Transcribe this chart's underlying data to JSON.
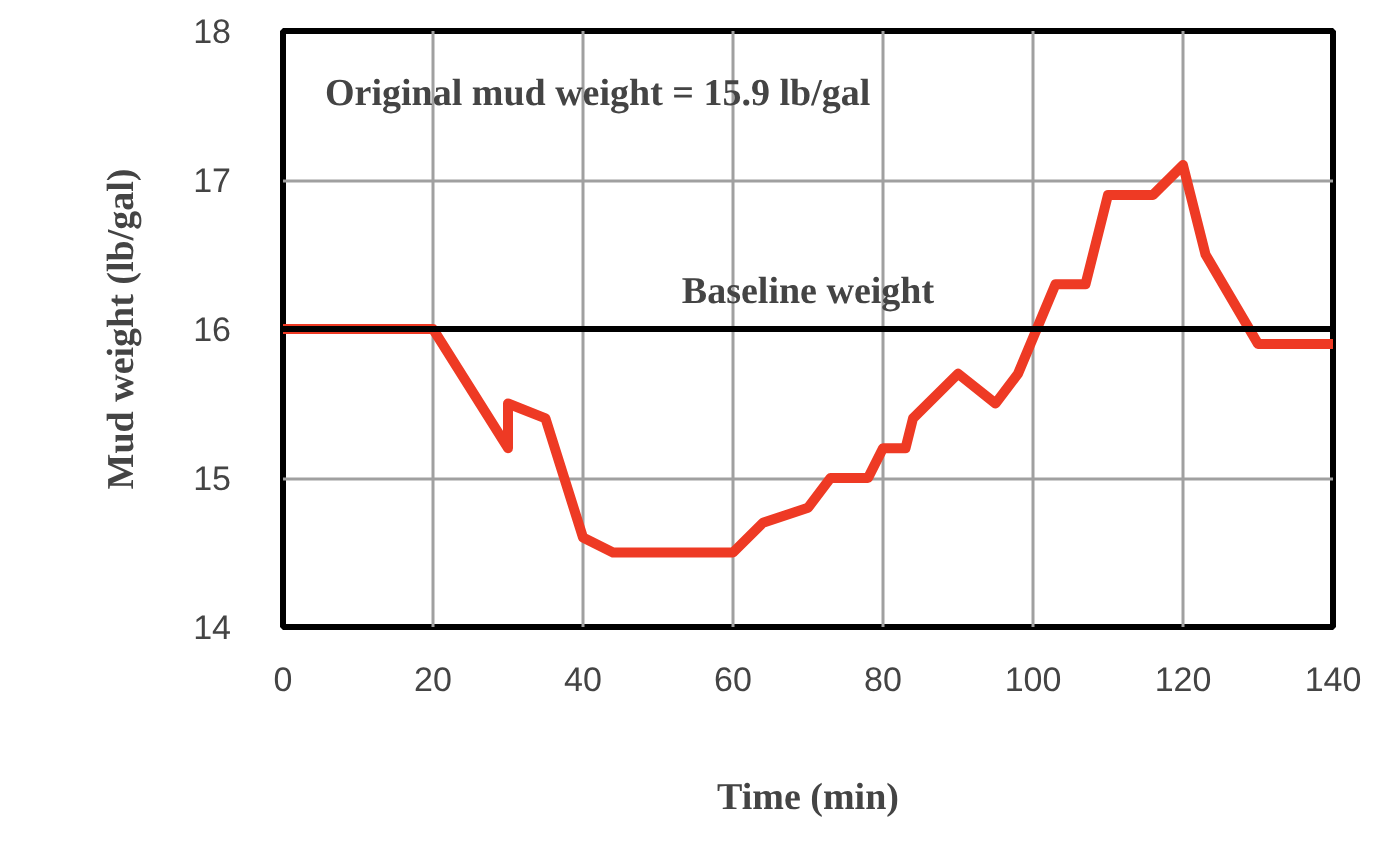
{
  "chart_data": {
    "type": "line",
    "xlabel": "Time (min)",
    "ylabel": "Mud weight (lb/gal)",
    "x": [
      0,
      20,
      30,
      30,
      35,
      40,
      44,
      60,
      64,
      70,
      73,
      78,
      80,
      83,
      84,
      90,
      95,
      98,
      103,
      107,
      110,
      116,
      120,
      123,
      130,
      140
    ],
    "series": [
      {
        "color": "#ee3a24",
        "values": [
          16,
          16,
          15.2,
          15.5,
          15.4,
          14.6,
          14.5,
          14.5,
          14.7,
          14.8,
          15.0,
          15.0,
          15.2,
          15.2,
          15.4,
          15.7,
          15.5,
          15.7,
          16.3,
          16.3,
          16.9,
          16.9,
          17.1,
          16.5,
          15.9,
          15.9
        ]
      }
    ],
    "xlim": [
      0,
      140
    ],
    "ylim": [
      14,
      18
    ],
    "xticks": [
      0,
      20,
      40,
      60,
      80,
      100,
      120,
      140
    ],
    "yticks": [
      14,
      15,
      16,
      17,
      18
    ],
    "grid": true,
    "marker": "none",
    "line_style": "solid",
    "ref_lines": [
      {
        "axis": "y",
        "value": 16,
        "label": "Baseline weight",
        "color": "#000000"
      }
    ],
    "annotations": [
      "Original mud weight = 15.9 lb/gal"
    ]
  }
}
